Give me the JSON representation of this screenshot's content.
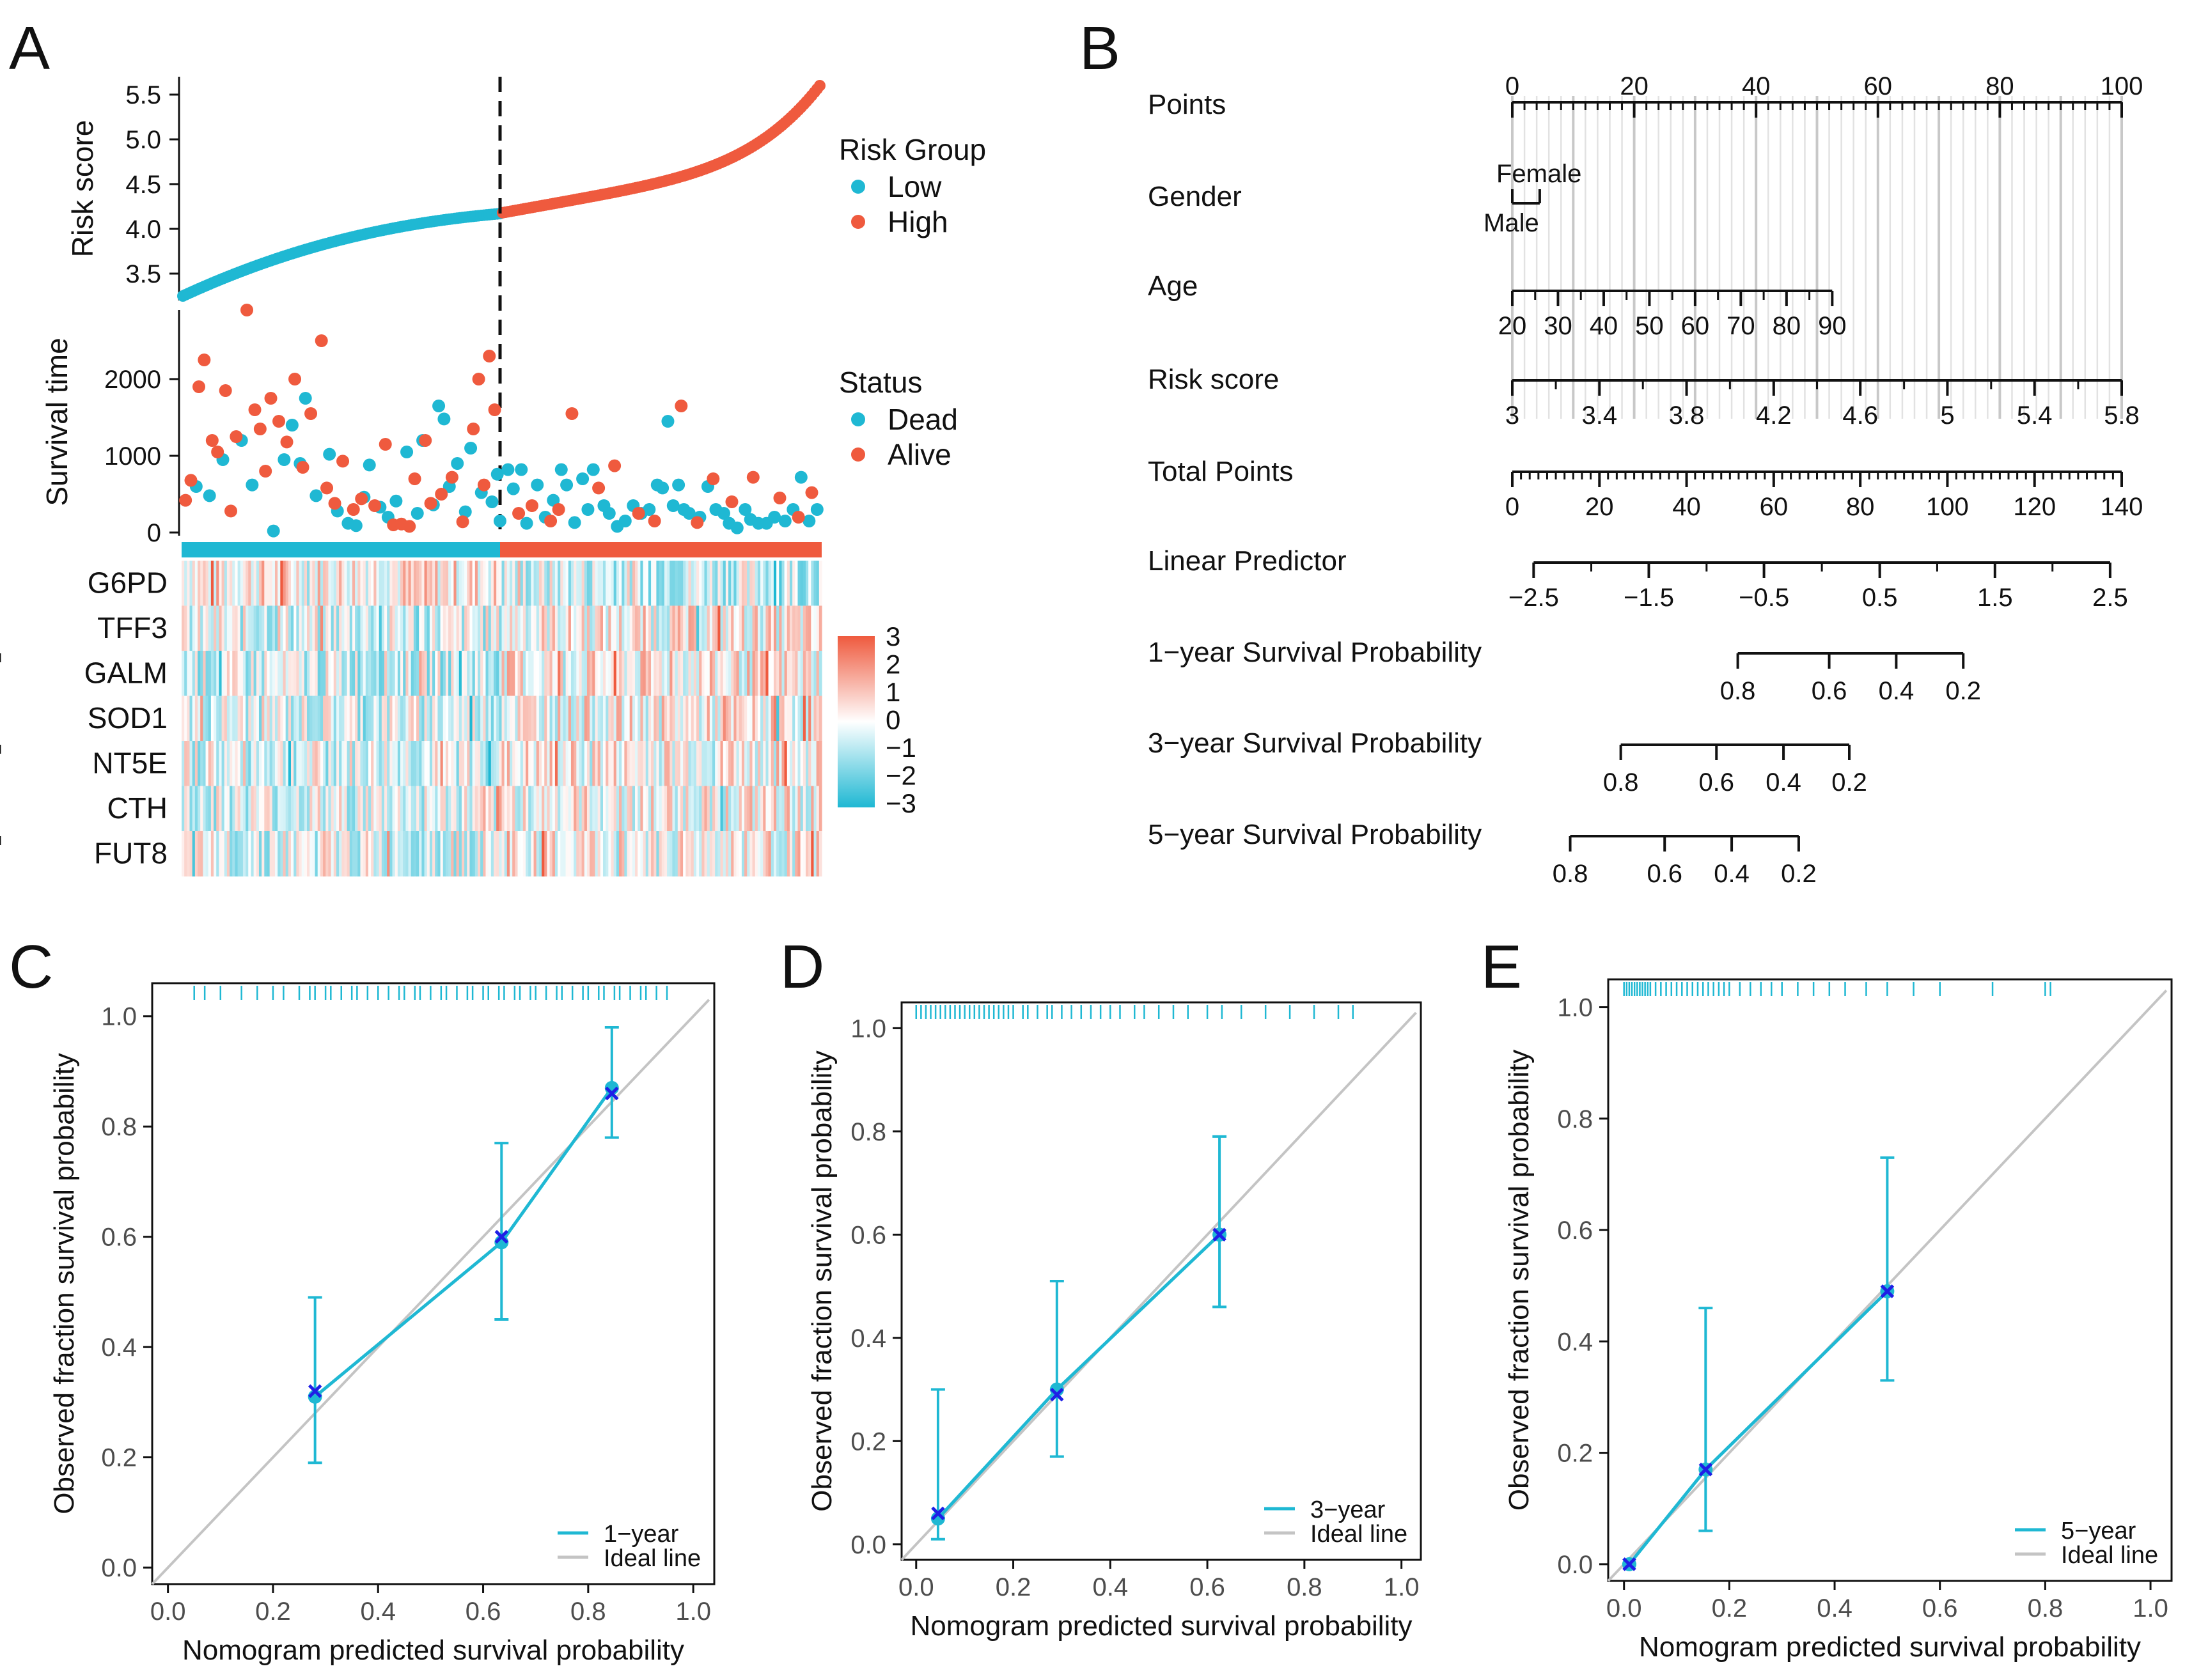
{
  "panels": {
    "a": "A",
    "b": "B",
    "c": "C",
    "d": "D",
    "e": "E"
  },
  "colors": {
    "low": "#1fb8d3",
    "high": "#ef5a3e",
    "cal": "#1fb8d3",
    "ideal": "#c4c4c4",
    "marker": "#1f1fe6"
  },
  "chart_data": [
    {
      "id": "A-risk",
      "type": "scatter",
      "ylabel": "Risk score",
      "ylim": [
        3.2,
        5.7
      ],
      "yticks": [
        "3.5",
        "4.0",
        "4.5",
        "5.0",
        "5.5"
      ],
      "cutoff_index": 120,
      "n": 240,
      "risk_low_range": [
        3.25,
        4.17
      ],
      "risk_high_range": [
        4.18,
        5.6
      ],
      "legend": {
        "title": "Risk Group",
        "items": [
          "Low",
          "High"
        ]
      }
    },
    {
      "id": "A-survival",
      "type": "scatter",
      "ylabel": "Survival time",
      "ylim": [
        0,
        2900
      ],
      "yticks": [
        "0",
        "1000",
        "2000"
      ],
      "legend": {
        "title": "Status",
        "items": [
          "Dead",
          "Alive"
        ]
      },
      "dead_low": [
        [
          5,
          600
        ],
        [
          10,
          480
        ],
        [
          15,
          950
        ],
        [
          22,
          1200
        ],
        [
          26,
          620
        ],
        [
          34,
          20
        ],
        [
          38,
          950
        ],
        [
          41,
          1400
        ],
        [
          44,
          900
        ],
        [
          46,
          1750
        ],
        [
          50,
          480
        ],
        [
          55,
          1020
        ],
        [
          58,
          280
        ],
        [
          62,
          120
        ],
        [
          65,
          90
        ],
        [
          68,
          460
        ],
        [
          70,
          880
        ],
        [
          74,
          330
        ],
        [
          77,
          200
        ],
        [
          80,
          410
        ],
        [
          84,
          1050
        ],
        [
          88,
          250
        ],
        [
          90,
          1200
        ],
        [
          94,
          360
        ],
        [
          96,
          1650
        ],
        [
          98,
          1480
        ],
        [
          100,
          600
        ],
        [
          103,
          900
        ],
        [
          106,
          270
        ],
        [
          108,
          1100
        ],
        [
          112,
          520
        ],
        [
          116,
          400
        ],
        [
          118,
          760
        ],
        [
          119,
          150
        ]
      ],
      "alive_low": [
        [
          1,
          420
        ],
        [
          3,
          680
        ],
        [
          6,
          1900
        ],
        [
          8,
          2250
        ],
        [
          11,
          1200
        ],
        [
          13,
          1050
        ],
        [
          16,
          1850
        ],
        [
          18,
          280
        ],
        [
          20,
          1250
        ],
        [
          24,
          2900
        ],
        [
          27,
          1600
        ],
        [
          29,
          1350
        ],
        [
          31,
          800
        ],
        [
          33,
          1750
        ],
        [
          36,
          1450
        ],
        [
          39,
          1180
        ],
        [
          42,
          2000
        ],
        [
          45,
          850
        ],
        [
          48,
          1550
        ],
        [
          52,
          2500
        ],
        [
          54,
          580
        ],
        [
          57,
          380
        ],
        [
          60,
          930
        ],
        [
          64,
          300
        ],
        [
          67,
          440
        ],
        [
          72,
          350
        ],
        [
          76,
          1150
        ],
        [
          79,
          100
        ],
        [
          82,
          110
        ],
        [
          85,
          80
        ],
        [
          87,
          700
        ],
        [
          91,
          1200
        ],
        [
          93,
          380
        ],
        [
          97,
          500
        ],
        [
          101,
          720
        ],
        [
          105,
          140
        ],
        [
          109,
          1350
        ],
        [
          111,
          2000
        ],
        [
          113,
          620
        ],
        [
          115,
          2300
        ],
        [
          117,
          1600
        ]
      ],
      "dead_high": [
        [
          122,
          820
        ],
        [
          124,
          570
        ],
        [
          127,
          820
        ],
        [
          129,
          120
        ],
        [
          133,
          620
        ],
        [
          136,
          200
        ],
        [
          139,
          420
        ],
        [
          142,
          820
        ],
        [
          144,
          620
        ],
        [
          147,
          130
        ],
        [
          150,
          700
        ],
        [
          152,
          300
        ],
        [
          154,
          820
        ],
        [
          158,
          350
        ],
        [
          160,
          250
        ],
        [
          163,
          80
        ],
        [
          166,
          150
        ],
        [
          169,
          350
        ],
        [
          172,
          250
        ],
        [
          175,
          300
        ],
        [
          178,
          620
        ],
        [
          180,
          580
        ],
        [
          182,
          1450
        ],
        [
          184,
          350
        ],
        [
          186,
          620
        ],
        [
          188,
          300
        ],
        [
          190,
          250
        ],
        [
          194,
          200
        ],
        [
          197,
          600
        ],
        [
          200,
          300
        ],
        [
          203,
          250
        ],
        [
          205,
          120
        ],
        [
          208,
          60
        ],
        [
          211,
          300
        ],
        [
          213,
          170
        ],
        [
          216,
          120
        ],
        [
          219,
          120
        ],
        [
          222,
          200
        ],
        [
          226,
          150
        ],
        [
          229,
          300
        ],
        [
          232,
          720
        ],
        [
          235,
          150
        ],
        [
          238,
          300
        ]
      ],
      "alive_high": [
        [
          126,
          250
        ],
        [
          131,
          350
        ],
        [
          138,
          150
        ],
        [
          141,
          300
        ],
        [
          146,
          1550
        ],
        [
          156,
          580
        ],
        [
          162,
          870
        ],
        [
          171,
          250
        ],
        [
          177,
          150
        ],
        [
          187,
          1650
        ],
        [
          193,
          130
        ],
        [
          199,
          700
        ],
        [
          206,
          400
        ],
        [
          214,
          720
        ],
        [
          224,
          450
        ],
        [
          231,
          200
        ],
        [
          236,
          520
        ]
      ]
    },
    {
      "id": "A-heatmap",
      "type": "heatmap",
      "genes": [
        "G6PD",
        "TFF3",
        "GALM",
        "SOD1",
        "NT5E",
        "CTH",
        "FUT8"
      ],
      "legend_ticks": [
        "3",
        "2",
        "1",
        "0",
        "−1",
        "−2",
        "−3"
      ],
      "range": [
        -3,
        3
      ]
    },
    {
      "id": "B-nomogram",
      "type": "nomogram",
      "rows": [
        {
          "label": "Points",
          "ticks": [
            "0",
            "20",
            "40",
            "60",
            "80",
            "100"
          ],
          "tick_pos": [
            0,
            20,
            40,
            60,
            80,
            100
          ]
        },
        {
          "label": "Gender",
          "ticks": [
            "Female",
            "Male"
          ],
          "tick_pos": [
            0,
            4.5
          ]
        },
        {
          "label": "Age",
          "ticks": [
            "20",
            "30",
            "40",
            "50",
            "60",
            "70",
            "80",
            "90"
          ],
          "tick_pos": [
            0,
            7.5,
            15,
            22.5,
            30,
            37.5,
            45,
            52.5
          ]
        },
        {
          "label": "Risk score",
          "ticks": [
            "3",
            "3.4",
            "3.8",
            "4.2",
            "4.6",
            "5",
            "5.4",
            "5.8"
          ],
          "tick_pos": [
            0,
            14.3,
            28.6,
            42.9,
            57.1,
            71.4,
            85.7,
            100
          ]
        },
        {
          "label": "Total Points",
          "ticks": [
            "0",
            "20",
            "40",
            "60",
            "80",
            "100",
            "120",
            "140"
          ],
          "tick_pos": [
            0,
            14.3,
            28.6,
            42.9,
            57.1,
            71.4,
            85.7,
            100
          ]
        },
        {
          "label": "Linear Predictor",
          "ticks": [
            "−2.5",
            "−1.5",
            "−0.5",
            "0.5",
            "1.5",
            "2.5"
          ],
          "tick_pos": [
            3.5,
            22.4,
            41.3,
            60.3,
            79.2,
            98.1
          ]
        },
        {
          "label": "1−year Survival Probability",
          "ticks": [
            "0.8",
            "0.6",
            "0.4",
            "0.2"
          ],
          "tick_pos": [
            37,
            52,
            63,
            74
          ]
        },
        {
          "label": "3−year Survival Probability",
          "ticks": [
            "0.8",
            "0.6",
            "0.4",
            "0.2"
          ],
          "tick_pos": [
            17.8,
            33.5,
            44.5,
            55.3
          ]
        },
        {
          "label": "5−year Survival Probability",
          "ticks": [
            "0.8",
            "0.6",
            "0.4",
            "0.2"
          ],
          "tick_pos": [
            9.5,
            25,
            36,
            47
          ]
        }
      ]
    },
    {
      "id": "C",
      "type": "line",
      "xlabel": "Nomogram predicted survival probability",
      "ylabel": "Observed fraction survival probability",
      "xlim": [
        -0.03,
        1.04
      ],
      "ylim": [
        -0.03,
        1.06
      ],
      "ticks": [
        "0.0",
        "0.2",
        "0.4",
        "0.6",
        "0.8",
        "1.0"
      ],
      "series": [
        {
          "name": "1−year",
          "points": [
            [
              0.28,
              0.31,
              0.19,
              0.49,
              0.32
            ],
            [
              0.635,
              0.59,
              0.45,
              0.77,
              0.6
            ],
            [
              0.845,
              0.87,
              0.78,
              0.98,
              0.86
            ]
          ]
        }
      ],
      "ideal_label": "Ideal line",
      "rug": [
        0.05,
        0.07,
        0.1,
        0.14,
        0.17,
        0.2,
        0.22,
        0.25,
        0.27,
        0.28,
        0.3,
        0.31,
        0.33,
        0.35,
        0.36,
        0.38,
        0.4,
        0.42,
        0.44,
        0.45,
        0.47,
        0.48,
        0.5,
        0.52,
        0.53,
        0.55,
        0.57,
        0.58,
        0.6,
        0.61,
        0.63,
        0.64,
        0.66,
        0.67,
        0.69,
        0.7,
        0.72,
        0.74,
        0.75,
        0.77,
        0.79,
        0.8,
        0.82,
        0.83,
        0.85,
        0.86,
        0.88,
        0.9,
        0.91,
        0.93,
        0.95
      ]
    },
    {
      "id": "D",
      "type": "line",
      "xlabel": "Nomogram predicted survival probability",
      "ylabel": "Observed fraction survival probability",
      "xlim": [
        -0.03,
        1.04
      ],
      "ylim": [
        -0.03,
        1.05
      ],
      "ticks": [
        "0.0",
        "0.2",
        "0.4",
        "0.6",
        "0.8",
        "1.0"
      ],
      "series": [
        {
          "name": "3−year",
          "points": [
            [
              0.045,
              0.05,
              0.01,
              0.3,
              0.06
            ],
            [
              0.29,
              0.3,
              0.17,
              0.51,
              0.29
            ],
            [
              0.625,
              0.6,
              0.46,
              0.79,
              0.6
            ]
          ]
        }
      ],
      "ideal_label": "Ideal line",
      "rug": [
        0.0,
        0.01,
        0.02,
        0.03,
        0.04,
        0.05,
        0.06,
        0.07,
        0.08,
        0.09,
        0.1,
        0.11,
        0.12,
        0.13,
        0.14,
        0.15,
        0.16,
        0.17,
        0.18,
        0.19,
        0.2,
        0.22,
        0.23,
        0.25,
        0.27,
        0.28,
        0.3,
        0.32,
        0.34,
        0.36,
        0.38,
        0.4,
        0.42,
        0.45,
        0.47,
        0.5,
        0.53,
        0.56,
        0.6,
        0.63,
        0.67,
        0.72,
        0.77,
        0.82,
        0.87,
        0.9
      ]
    },
    {
      "id": "E",
      "type": "line",
      "xlabel": "Nomogram predicted survival probability",
      "ylabel": "Observed fraction survival probability",
      "xlim": [
        -0.03,
        1.04
      ],
      "ylim": [
        -0.03,
        1.05
      ],
      "ticks": [
        "0.0",
        "0.2",
        "0.4",
        "0.6",
        "0.8",
        "1.0"
      ],
      "series": [
        {
          "name": "5−year",
          "points": [
            [
              0.01,
              0.0,
              0.0,
              0.0,
              0.0
            ],
            [
              0.155,
              0.17,
              0.06,
              0.46,
              0.17
            ],
            [
              0.5,
              0.49,
              0.33,
              0.73,
              0.49
            ]
          ]
        }
      ],
      "ideal_label": "Ideal line",
      "rug": [
        0.0,
        0.005,
        0.01,
        0.015,
        0.02,
        0.025,
        0.03,
        0.035,
        0.04,
        0.045,
        0.05,
        0.06,
        0.07,
        0.08,
        0.09,
        0.1,
        0.11,
        0.12,
        0.13,
        0.14,
        0.15,
        0.16,
        0.17,
        0.18,
        0.19,
        0.2,
        0.22,
        0.24,
        0.26,
        0.28,
        0.3,
        0.33,
        0.36,
        0.39,
        0.42,
        0.46,
        0.5,
        0.55,
        0.6,
        0.7,
        0.8,
        0.81
      ]
    }
  ]
}
